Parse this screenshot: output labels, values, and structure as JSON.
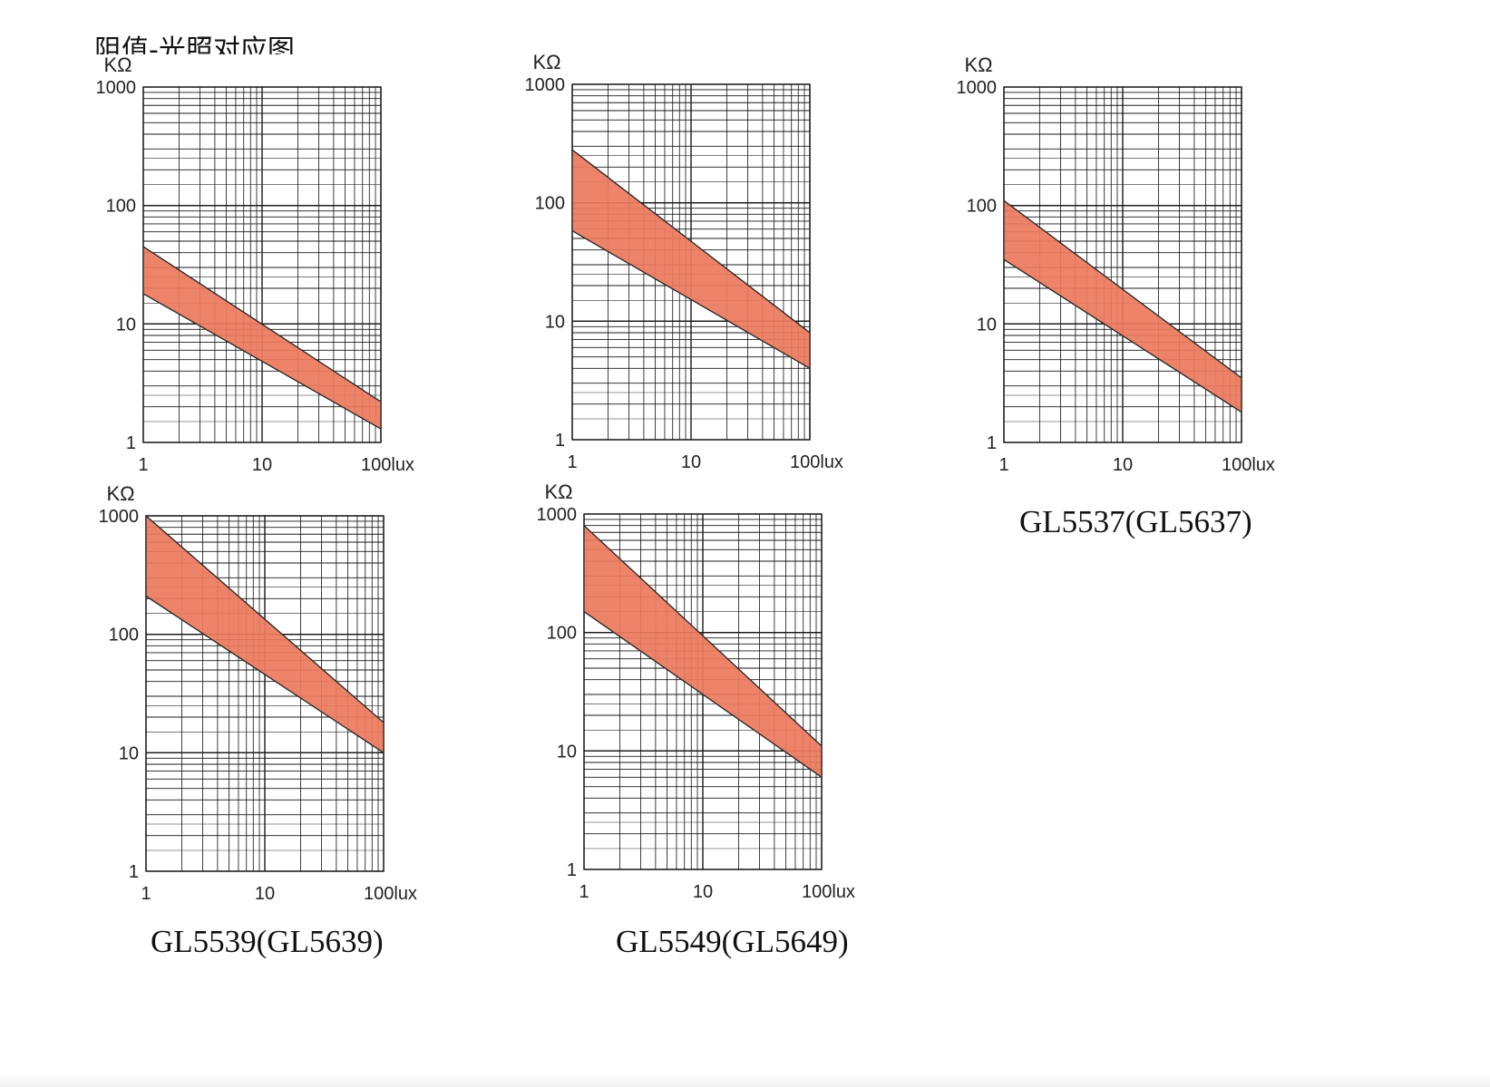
{
  "page": {
    "title": "阻值-光照对应图"
  },
  "colors": {
    "band_fill": "#ec7a5e",
    "band_edge": "#2b2b2b",
    "grid_major": "#1a1a1a",
    "grid_minor": "#2a2a2a",
    "background": "#ffffff"
  },
  "chart_data": [
    {
      "type": "area",
      "id": "chart-1",
      "caption": "",
      "ylabel": "KΩ",
      "x_unit": "lux",
      "xscale": "log",
      "yscale": "log",
      "xlim": [
        1,
        100
      ],
      "ylim": [
        1,
        1000
      ],
      "x_ticks": [
        1,
        10,
        100
      ],
      "x_tick_labels": [
        "1",
        "10",
        "100lux"
      ],
      "y_ticks": [
        1,
        10,
        100,
        1000
      ],
      "y_tick_labels": [
        "1",
        "10",
        "100",
        "1000"
      ],
      "grid": true,
      "series": [
        {
          "name": "upper",
          "x": [
            1,
            100
          ],
          "values": [
            45,
            2.2
          ]
        },
        {
          "name": "lower",
          "x": [
            1,
            100
          ],
          "values": [
            18,
            1.3
          ]
        }
      ]
    },
    {
      "type": "area",
      "id": "chart-2",
      "caption": "",
      "ylabel": "KΩ",
      "x_unit": "lux",
      "xscale": "log",
      "yscale": "log",
      "xlim": [
        1,
        100
      ],
      "ylim": [
        1,
        1000
      ],
      "x_ticks": [
        1,
        10,
        100
      ],
      "x_tick_labels": [
        "1",
        "10",
        "100lux"
      ],
      "y_ticks": [
        1,
        10,
        100,
        1000
      ],
      "y_tick_labels": [
        "1",
        "10",
        "100",
        "1000"
      ],
      "grid": true,
      "series": [
        {
          "name": "upper",
          "x": [
            1,
            100
          ],
          "values": [
            280,
            8
          ]
        },
        {
          "name": "lower",
          "x": [
            1,
            100
          ],
          "values": [
            58,
            4
          ]
        }
      ]
    },
    {
      "type": "area",
      "id": "chart-3",
      "caption": "GL5537(GL5637)",
      "ylabel": "KΩ",
      "x_unit": "lux",
      "xscale": "log",
      "yscale": "log",
      "xlim": [
        1,
        100
      ],
      "ylim": [
        1,
        1000
      ],
      "x_ticks": [
        1,
        10,
        100
      ],
      "x_tick_labels": [
        "1",
        "10",
        "100lux"
      ],
      "y_ticks": [
        1,
        10,
        100,
        1000
      ],
      "y_tick_labels": [
        "1",
        "10",
        "100",
        "1000"
      ],
      "grid": true,
      "series": [
        {
          "name": "upper",
          "x": [
            1,
            100
          ],
          "values": [
            110,
            3.5
          ]
        },
        {
          "name": "lower",
          "x": [
            1,
            100
          ],
          "values": [
            35,
            1.8
          ]
        }
      ]
    },
    {
      "type": "area",
      "id": "chart-4",
      "caption": "GL5539(GL5639)",
      "ylabel": "KΩ",
      "x_unit": "lux",
      "xscale": "log",
      "yscale": "log",
      "xlim": [
        1,
        100
      ],
      "ylim": [
        1,
        1000
      ],
      "x_ticks": [
        1,
        10,
        100
      ],
      "x_tick_labels": [
        "1",
        "10",
        "100lux"
      ],
      "y_ticks": [
        1,
        10,
        100,
        1000
      ],
      "y_tick_labels": [
        "1",
        "10",
        "100",
        "1000"
      ],
      "grid": true,
      "series": [
        {
          "name": "upper",
          "x": [
            1,
            100
          ],
          "values": [
            1000,
            18
          ]
        },
        {
          "name": "lower",
          "x": [
            1,
            100
          ],
          "values": [
            210,
            10
          ]
        }
      ]
    },
    {
      "type": "area",
      "id": "chart-5",
      "caption": "GL5549(GL5649)",
      "ylabel": "KΩ",
      "x_unit": "lux",
      "xscale": "log",
      "yscale": "log",
      "xlim": [
        1,
        100
      ],
      "ylim": [
        1,
        1000
      ],
      "x_ticks": [
        1,
        10,
        100
      ],
      "x_tick_labels": [
        "1",
        "10",
        "100lux"
      ],
      "y_ticks": [
        1,
        10,
        100,
        1000
      ],
      "y_tick_labels": [
        "1",
        "10",
        "100",
        "1000"
      ],
      "grid": true,
      "series": [
        {
          "name": "upper",
          "x": [
            1,
            100
          ],
          "values": [
            800,
            11
          ]
        },
        {
          "name": "lower",
          "x": [
            1,
            100
          ],
          "values": [
            150,
            6
          ]
        }
      ]
    }
  ]
}
